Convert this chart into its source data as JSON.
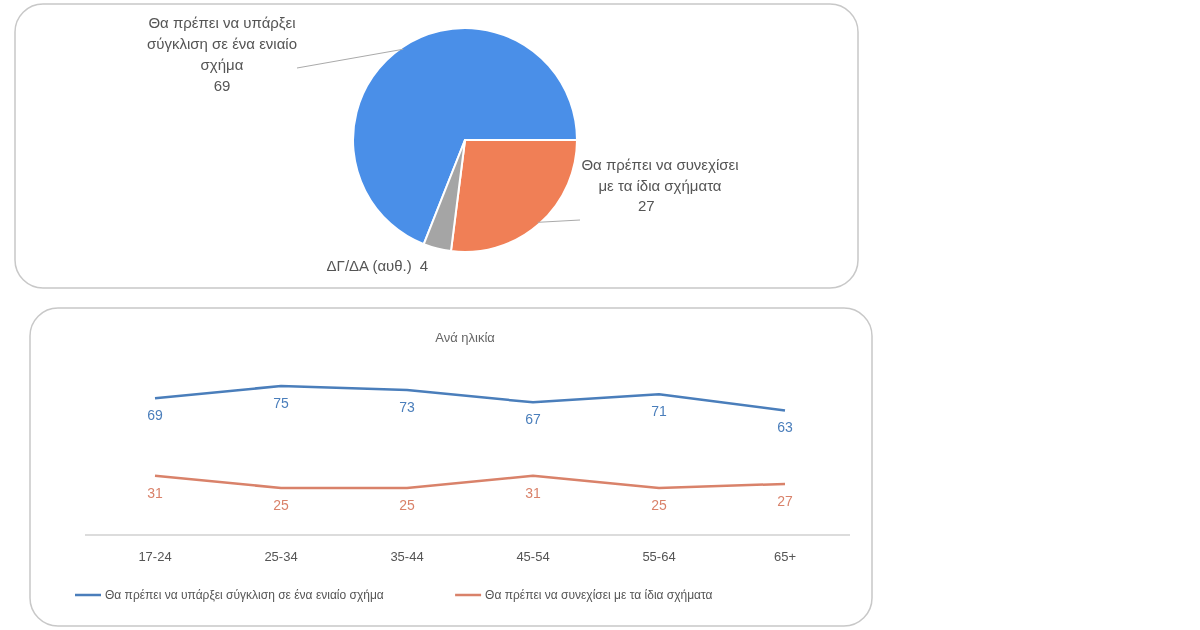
{
  "chart_data": [
    {
      "type": "pie",
      "categories": [
        "Θα πρέπει να υπάρξει σύγκλιση σε ένα ενιαίο σχήμα",
        "Θα πρέπει να συνεχίσει με τα ίδια σχήματα",
        "ΔΓ/ΔΑ (αυθ.)"
      ],
      "values": [
        69,
        27,
        4
      ],
      "colors": [
        "#4a8fe8",
        "#f07f56",
        "#a5a5a5"
      ],
      "data_labels": true
    },
    {
      "type": "line",
      "title": "Ανά ηλικία",
      "categories": [
        "17-24",
        "25-34",
        "35-44",
        "45-54",
        "55-64",
        "65+"
      ],
      "series": [
        {
          "name": "Θα πρέπει να υπάρξει σύγκλιση σε ένα ενιαίο σχήμα",
          "color": "#4a7ebb",
          "values": [
            69,
            75,
            73,
            67,
            71,
            63
          ]
        },
        {
          "name": "Θα πρέπει να συνεχίσει με τα ίδια σχήματα",
          "color": "#d9826a",
          "values": [
            31,
            25,
            25,
            31,
            25,
            27
          ]
        }
      ],
      "data_labels": true,
      "legend": "bottom",
      "grid": false
    }
  ]
}
